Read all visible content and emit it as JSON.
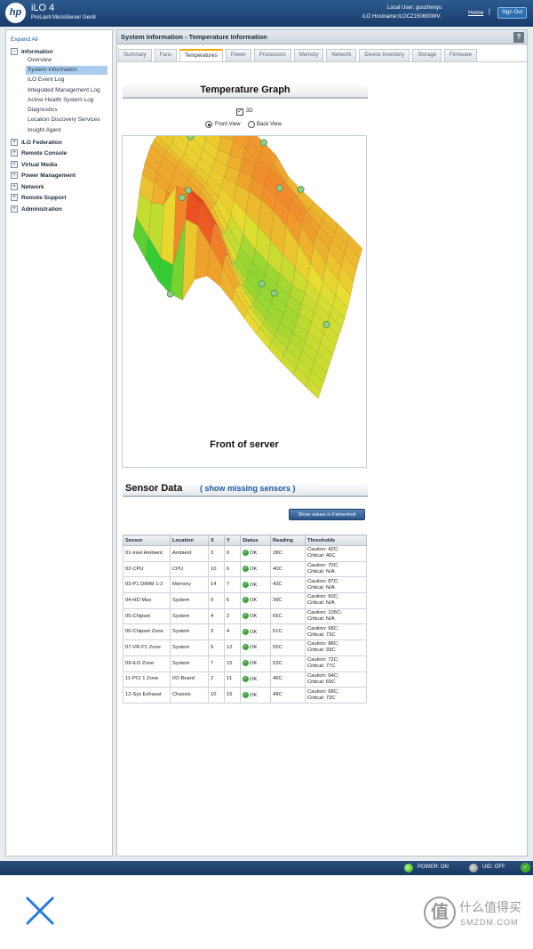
{
  "header": {
    "logo": "hp",
    "product": "iLO 4",
    "product_sub": "ProLiant MicroServer Gen8",
    "local_user": "Local User:  guozhenyu",
    "hostname": "iLO Hostname:ILOCZ150600WV.",
    "home": "Home",
    "separator": "|",
    "sign_out": "Sign Out"
  },
  "sidebar": {
    "expand_all": "Expand All",
    "groups": [
      {
        "label": "Information",
        "symbol": "-"
      },
      {
        "label": "iLO Federation",
        "symbol": "+"
      },
      {
        "label": "Remote Console",
        "symbol": "+"
      },
      {
        "label": "Virtual Media",
        "symbol": "+"
      },
      {
        "label": "Power Management",
        "symbol": "+"
      },
      {
        "label": "Network",
        "symbol": "+"
      },
      {
        "label": "Remote Support",
        "symbol": "+"
      },
      {
        "label": "Administration",
        "symbol": "+"
      }
    ],
    "info_items": [
      "Overview",
      "System Information",
      "iLO Event Log",
      "Integrated Management Log",
      "Active Health System Log",
      "Diagnostics",
      "Location Discovery Services",
      "Insight Agent"
    ],
    "active_item": "System Information"
  },
  "main": {
    "title": "System Information - Temperature Information",
    "help": "?",
    "tabs": [
      "Summary",
      "Fans",
      "Temperatures",
      "Power",
      "Processors",
      "Memory",
      "Network",
      "Device Inventory",
      "Storage",
      "Firmware"
    ],
    "active_tab": "Temperatures"
  },
  "graph": {
    "title": "Temperature Graph",
    "checkbox_3d": "3D",
    "check_mark": "✓",
    "front_view": "Front View",
    "back_view": "Back View",
    "caption": "Front of server",
    "colors": {
      "cool": "#33cc33",
      "mid": "#e8e030",
      "warm": "#f28a2a",
      "hot": "#e8351c"
    }
  },
  "sensors": {
    "title": "Sensor Data",
    "missing_link": "( show missing sensors )",
    "fahrenheit_button": "Show values in Fahrenheit",
    "columns": [
      "Sensor",
      "Location",
      "X",
      "Y",
      "Status",
      "Reading",
      "Thresholds"
    ],
    "rows": [
      {
        "sensor": "01-Inlet Ambient",
        "location": "Ambient",
        "x": "3",
        "y": "0",
        "status": "OK",
        "reading": "28C",
        "caution": "Caution: 42C;",
        "critical": "Critical: 46C"
      },
      {
        "sensor": "02-CPU",
        "location": "CPU",
        "x": "10",
        "y": "6",
        "status": "OK",
        "reading": "40C",
        "caution": "Caution: 70C;",
        "critical": "Critical: N/A"
      },
      {
        "sensor": "03-P1 DIMM 1-2",
        "location": "Memory",
        "x": "14",
        "y": "7",
        "status": "OK",
        "reading": "43C",
        "caution": "Caution: 87C;",
        "critical": "Critical: N/A"
      },
      {
        "sensor": "04-HD Max",
        "location": "System",
        "x": "9",
        "y": "6",
        "status": "OK",
        "reading": "39C",
        "caution": "Caution: 60C;",
        "critical": "Critical: N/A"
      },
      {
        "sensor": "05-Chipset",
        "location": "System",
        "x": "4",
        "y": "2",
        "status": "OK",
        "reading": "65C",
        "caution": "Caution: 105C;",
        "critical": "Critical: N/A"
      },
      {
        "sensor": "06-Chipset Zone",
        "location": "System",
        "x": "3",
        "y": "4",
        "status": "OK",
        "reading": "51C",
        "caution": "Caution: 68C;",
        "critical": "Critical: 73C"
      },
      {
        "sensor": "07-VR P1 Zone",
        "location": "System",
        "x": "9",
        "y": "12",
        "status": "OK",
        "reading": "55C",
        "caution": "Caution: 88C;",
        "critical": "Critical: 93C"
      },
      {
        "sensor": "09-iLO Zone",
        "location": "System",
        "x": "7",
        "y": "15",
        "status": "OK",
        "reading": "53C",
        "caution": "Caution: 72C;",
        "critical": "Critical: 77C"
      },
      {
        "sensor": "11-PCI 1 Zone",
        "location": "I/O Board",
        "x": "2",
        "y": "11",
        "status": "OK",
        "reading": "46C",
        "caution": "Caution: 64C;",
        "critical": "Critical: 69C"
      },
      {
        "sensor": "12-Sys Exhaust",
        "location": "Chassis",
        "x": "10",
        "y": "15",
        "status": "OK",
        "reading": "49C",
        "caution": "Caution: 68C;",
        "critical": "Critical: 73C"
      }
    ]
  },
  "statusbar": {
    "power": "POWER: ON",
    "uid": "UID: OFF",
    "ok_icon": "✓"
  },
  "watermark": {
    "glyph": "值",
    "text": "什么值得买",
    "domain": "SMZDM.COM"
  }
}
